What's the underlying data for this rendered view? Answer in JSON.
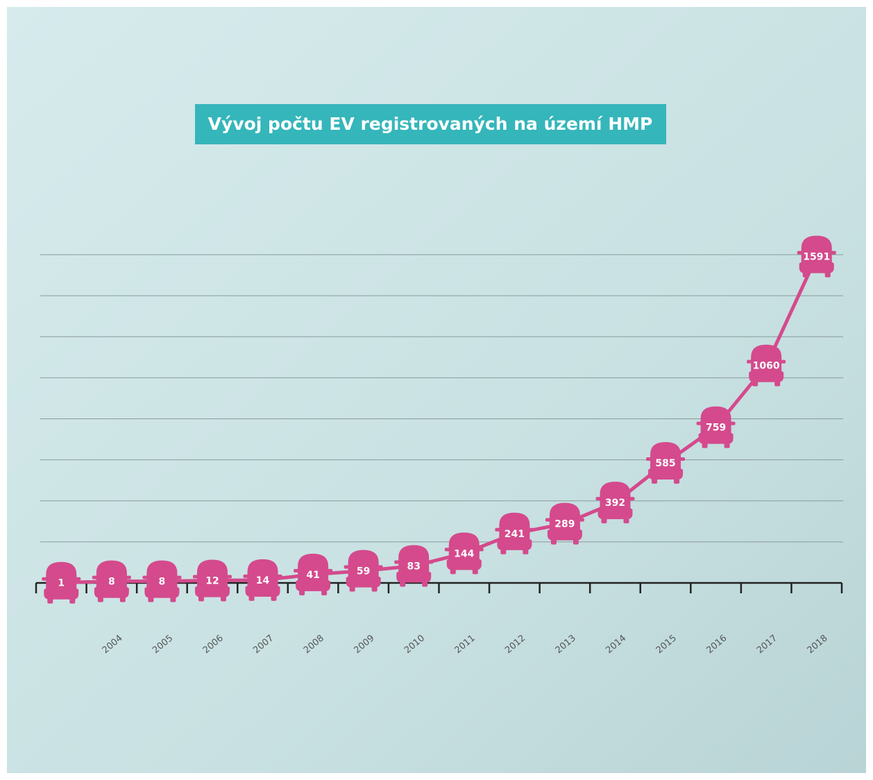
{
  "chart_data": {
    "type": "line",
    "title": "Vývoj počtu EV registrovaných na území HMP",
    "categories": [
      null,
      "2004",
      "2005",
      "2006",
      "2007",
      "2008",
      "2009",
      "2010",
      "2011",
      "2012",
      "2013",
      "2014",
      "2015",
      "2016",
      "2017",
      "2018"
    ],
    "values": [
      1,
      8,
      8,
      12,
      14,
      41,
      59,
      83,
      144,
      241,
      289,
      392,
      585,
      759,
      1060,
      1591
    ],
    "color": "#d44a8d",
    "ylim": [
      0,
      1600
    ],
    "yticks": [
      200,
      400,
      600,
      800,
      1000,
      1200,
      1400,
      1600
    ],
    "grid": true
  }
}
